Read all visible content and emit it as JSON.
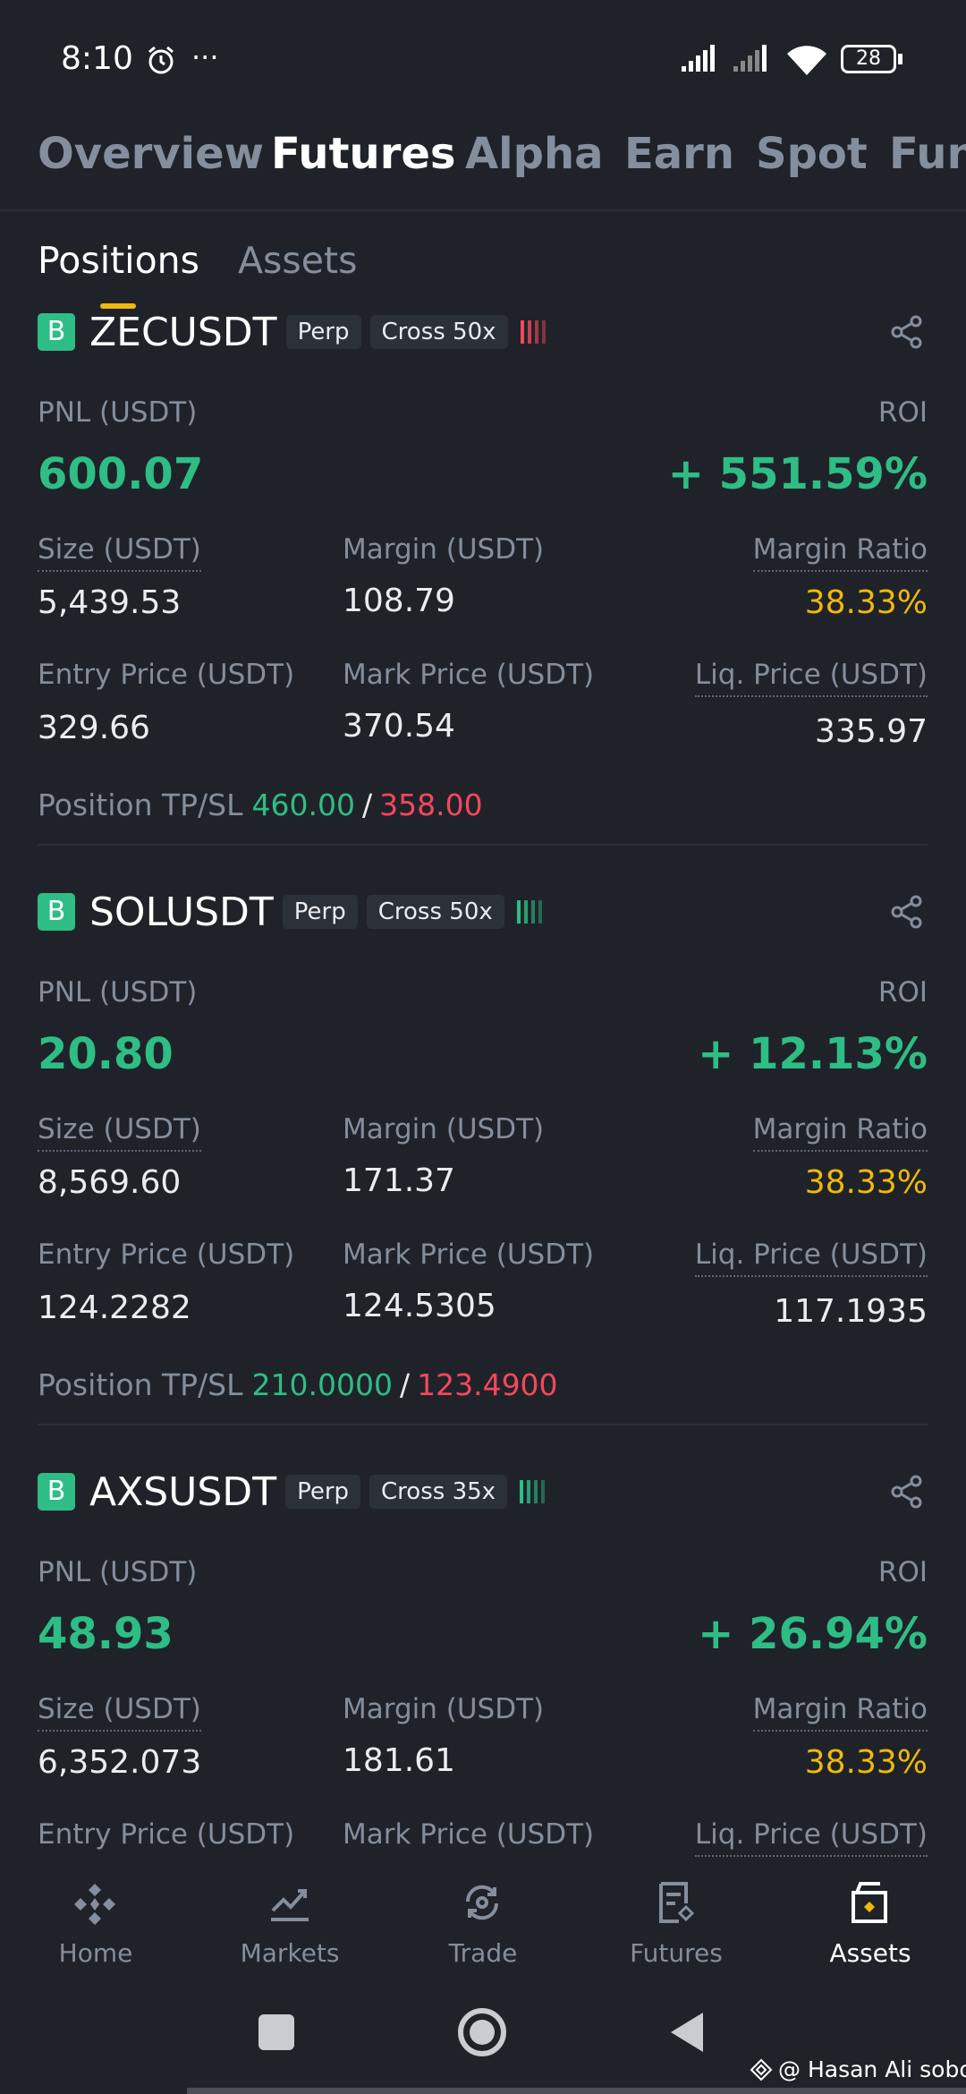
{
  "status_bar": {
    "time": "8:10",
    "more": "···",
    "battery": "28"
  },
  "top_tabs": [
    "Overview",
    "Futures",
    "Alpha",
    "Earn",
    "Spot",
    "Fun"
  ],
  "active_top_tab": 1,
  "sub_tabs": [
    "Positions",
    "Assets"
  ],
  "labels": {
    "pnl": "PNL (USDT)",
    "roi": "ROI",
    "size": "Size (USDT)",
    "margin": "Margin (USDT)",
    "margin_ratio": "Margin Ratio",
    "entry": "Entry Price (USDT)",
    "mark": "Mark Price (USDT)",
    "liq": "Liq. Price (USDT)",
    "tp_sl": "Position TP/SL",
    "tp_sl_separator": "/"
  },
  "positions": [
    {
      "badge": "B",
      "symbol": "ZECUSDT",
      "tags": [
        "Perp",
        "Cross 50x"
      ],
      "risk_color": "#f6465d",
      "pnl": "600.07",
      "roi": "+ 551.59%",
      "size": "5,439.53",
      "margin": "108.79",
      "margin_ratio": "38.33%",
      "entry": "329.66",
      "mark": "370.54",
      "liq": "335.97",
      "tp": "460.00",
      "sl": "358.00"
    },
    {
      "badge": "B",
      "symbol": "SOLUSDT",
      "tags": [
        "Perp",
        "Cross 50x"
      ],
      "risk_color": "#2ebd85",
      "pnl": "20.80",
      "roi": "+ 12.13%",
      "size": "8,569.60",
      "margin": "171.37",
      "margin_ratio": "38.33%",
      "entry": "124.2282",
      "mark": "124.5305",
      "liq": "117.1935",
      "tp": "210.0000",
      "sl": "123.4900"
    },
    {
      "badge": "B",
      "symbol": "AXSUSDT",
      "tags": [
        "Perp",
        "Cross 35x"
      ],
      "risk_color": "#2ebd85",
      "pnl": "48.93",
      "roi": "+ 26.94%",
      "size": "6,352.073",
      "margin": "181.61",
      "margin_ratio": "38.33%"
    }
  ],
  "bottom_nav": [
    "Home",
    "Markets",
    "Trade",
    "Futures",
    "Assets"
  ],
  "active_bottom_nav": 4,
  "watermark": "@ Hasan Ali soboj"
}
